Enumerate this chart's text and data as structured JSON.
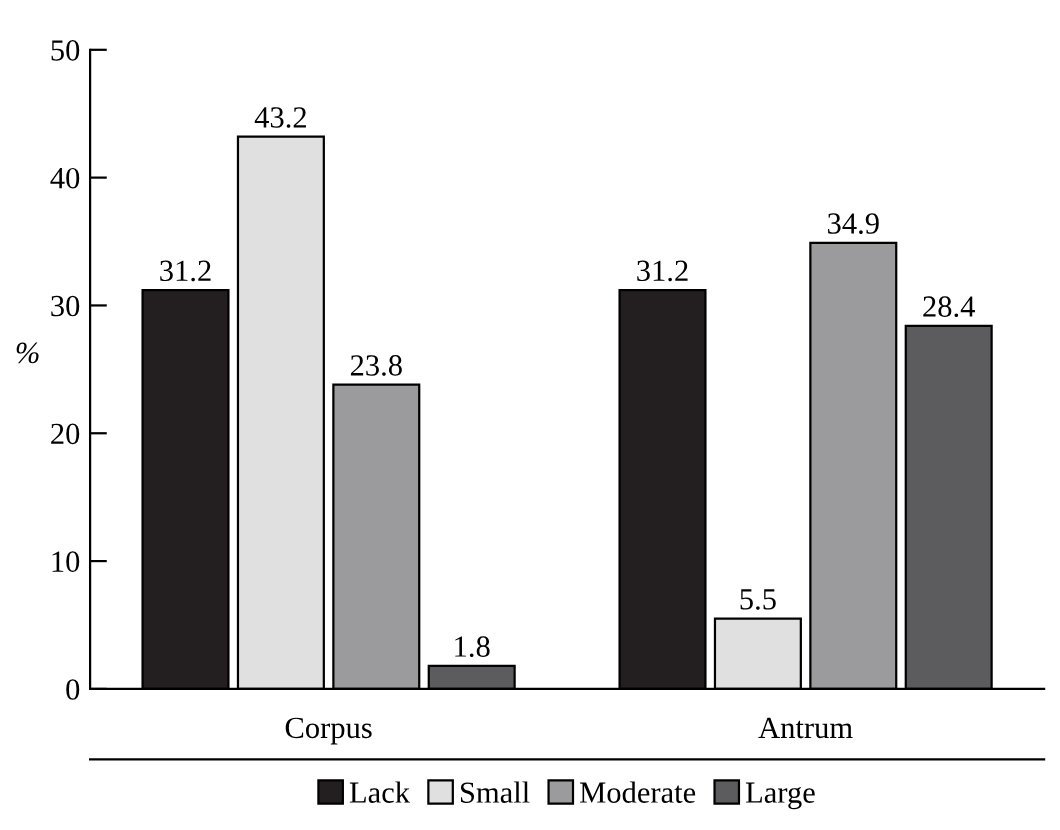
{
  "chart_data": {
    "type": "bar",
    "ylabel": "%",
    "categories": [
      "Corpus",
      "Antrum"
    ],
    "series": [
      {
        "name": "Lack",
        "color": "#231f20",
        "values": [
          31.2,
          31.2
        ]
      },
      {
        "name": "Small",
        "color": "#e0e0e0",
        "values": [
          43.2,
          5.5
        ]
      },
      {
        "name": "Moderate",
        "color": "#9b9b9d",
        "values": [
          23.8,
          34.9
        ]
      },
      {
        "name": "Large",
        "color": "#5c5c5e",
        "values": [
          1.8,
          28.4
        ]
      }
    ],
    "ylim": [
      0,
      50
    ],
    "yticks": [
      0,
      10,
      20,
      30,
      40,
      50
    ],
    "data_labels": true,
    "legend": "bottom",
    "grid": false
  }
}
